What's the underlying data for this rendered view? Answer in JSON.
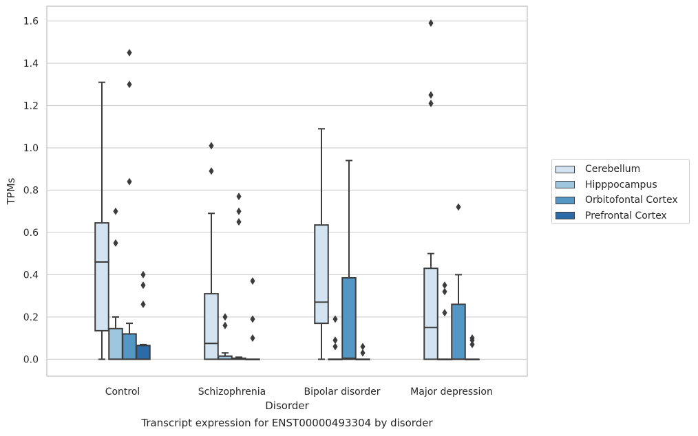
{
  "caption": "Transcript expression for ENST00000493304 by disorder",
  "chart_data": {
    "type": "boxplot",
    "xlabel": "Disorder",
    "ylabel": "TPMs",
    "ylim": [
      -0.08,
      1.67
    ],
    "yticks": [
      "0.0",
      "0.2",
      "0.4",
      "0.6",
      "0.8",
      "1.0",
      "1.2",
      "1.4",
      "1.6"
    ],
    "categories": [
      "Control",
      "Schizophrenia",
      "Bipolar disorder",
      "Major depression"
    ],
    "grid": true,
    "legend_position": "right",
    "series": [
      {
        "name": "Cerebellum",
        "color": "#d3e3f1",
        "boxes": [
          {
            "whislo": 0.0,
            "q1": 0.135,
            "med": 0.46,
            "q3": 0.645,
            "whishi": 1.31,
            "fliers": []
          },
          {
            "whislo": 0.0,
            "q1": 0.0,
            "med": 0.075,
            "q3": 0.31,
            "whishi": 0.69,
            "fliers": [
              0.89,
              1.01
            ]
          },
          {
            "whislo": 0.0,
            "q1": 0.17,
            "med": 0.27,
            "q3": 0.635,
            "whishi": 1.09,
            "fliers": []
          },
          {
            "whislo": 0.0,
            "q1": 0.0,
            "med": 0.15,
            "q3": 0.43,
            "whishi": 0.5,
            "fliers": [
              1.21,
              1.25,
              1.59
            ]
          }
        ]
      },
      {
        "name": "Hipppocampus",
        "color": "#9fc6df",
        "boxes": [
          {
            "whislo": 0.0,
            "q1": 0.0,
            "med": 0.0,
            "q3": 0.145,
            "whishi": 0.2,
            "fliers": [
              0.55,
              0.7
            ]
          },
          {
            "whislo": 0.0,
            "q1": 0.0,
            "med": 0.0,
            "q3": 0.015,
            "whishi": 0.03,
            "fliers": [
              0.16,
              0.2
            ]
          },
          {
            "whislo": 0.0,
            "q1": 0.0,
            "med": 0.0,
            "q3": 0.0,
            "whishi": 0.0,
            "fliers": [
              0.06,
              0.09,
              0.19
            ]
          },
          {
            "whislo": 0.0,
            "q1": 0.0,
            "med": 0.0,
            "q3": 0.0,
            "whishi": 0.0,
            "fliers": [
              0.22,
              0.32,
              0.35
            ]
          }
        ]
      },
      {
        "name": "Orbitofontal Cortex",
        "color": "#5496c4",
        "boxes": [
          {
            "whislo": 0.0,
            "q1": 0.0,
            "med": 0.0,
            "q3": 0.12,
            "whishi": 0.17,
            "fliers": [
              0.84,
              1.3,
              1.45
            ]
          },
          {
            "whislo": 0.0,
            "q1": 0.0,
            "med": 0.0,
            "q3": 0.005,
            "whishi": 0.01,
            "fliers": [
              0.65,
              0.7,
              0.77
            ]
          },
          {
            "whislo": 0.0,
            "q1": 0.0,
            "med": 0.005,
            "q3": 0.385,
            "whishi": 0.94,
            "fliers": []
          },
          {
            "whislo": 0.0,
            "q1": 0.0,
            "med": 0.0,
            "q3": 0.26,
            "whishi": 0.4,
            "fliers": [
              0.72
            ]
          }
        ]
      },
      {
        "name": "Prefrontal Cortex",
        "color": "#2b6ca8",
        "boxes": [
          {
            "whislo": 0.0,
            "q1": 0.0,
            "med": 0.0,
            "q3": 0.065,
            "whishi": 0.07,
            "fliers": [
              0.26,
              0.35,
              0.4
            ]
          },
          {
            "whislo": 0.0,
            "q1": 0.0,
            "med": 0.0,
            "q3": 0.0,
            "whishi": 0.0,
            "fliers": [
              0.1,
              0.19,
              0.37
            ]
          },
          {
            "whislo": 0.0,
            "q1": 0.0,
            "med": 0.0,
            "q3": 0.0,
            "whishi": 0.0,
            "fliers": [
              0.03,
              0.06
            ]
          },
          {
            "whislo": 0.0,
            "q1": 0.0,
            "med": 0.0,
            "q3": 0.0,
            "whishi": 0.0,
            "fliers": [
              0.07,
              0.09,
              0.1
            ]
          }
        ]
      }
    ]
  }
}
